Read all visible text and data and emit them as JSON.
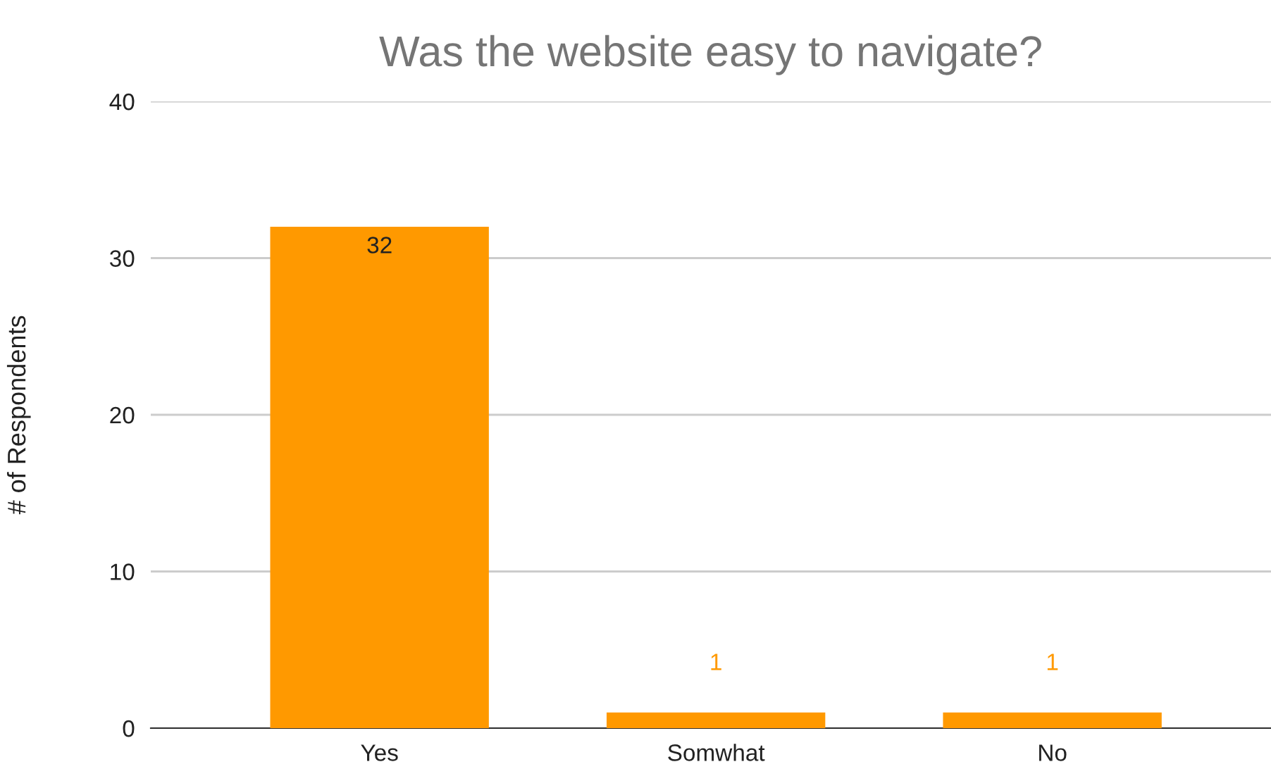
{
  "chart_data": {
    "type": "bar",
    "title": "Was the website easy to navigate?",
    "ylabel": "# of Respondents",
    "categories": [
      "Yes",
      "Somwhat",
      "No"
    ],
    "values": [
      32,
      1,
      1
    ],
    "color": "#ff9900",
    "ylim": [
      0,
      40
    ],
    "yticks": [
      0,
      10,
      20,
      30,
      40
    ],
    "grid": "y",
    "data_labels": true
  }
}
